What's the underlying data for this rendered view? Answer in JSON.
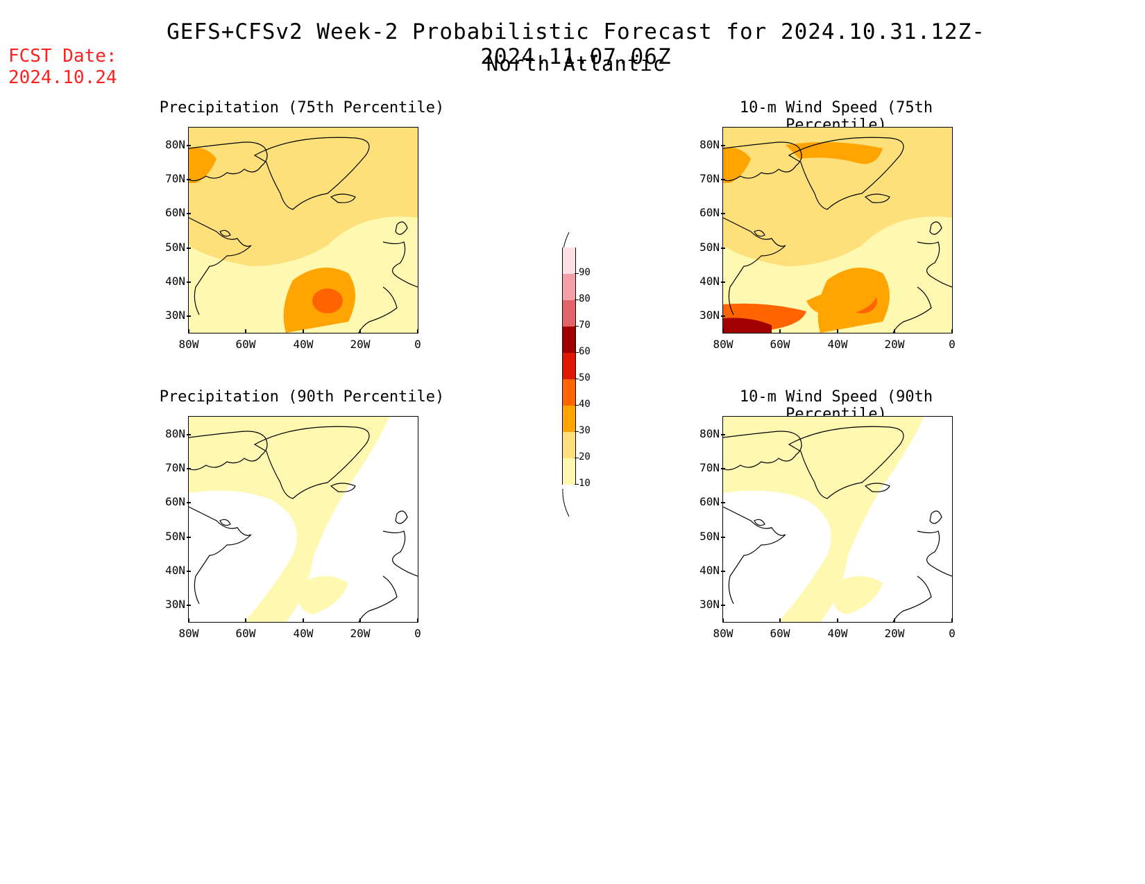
{
  "header": {
    "title": "GEFS+CFSv2 Week-2 Probabilistic Forecast for 2024.10.31.12Z-2024.11.07.06Z",
    "subtitle": "North Atlantic",
    "fcst_label": "FCST Date:",
    "fcst_date": "2024.10.24"
  },
  "panels": [
    {
      "title": "Precipitation (75th Percentile)",
      "level": 2
    },
    {
      "title": "10-m Wind Speed (75th Percentile)",
      "level": 3
    },
    {
      "title": "Precipitation (90th Percentile)",
      "level": 1
    },
    {
      "title": "10-m Wind Speed (90th Percentile)",
      "level": 1
    }
  ],
  "axes": {
    "lat_labels": [
      "80N",
      "70N",
      "60N",
      "50N",
      "40N",
      "30N"
    ],
    "lon_labels": [
      "80W",
      "60W",
      "40W",
      "20W",
      "0"
    ]
  },
  "colorbar": {
    "labels": [
      "90",
      "80",
      "70",
      "60",
      "50",
      "40",
      "30",
      "20",
      "10"
    ],
    "colors": [
      "#fde0e4",
      "#f4a0a6",
      "#e06468",
      "#a20000",
      "#e01800",
      "#ff6400",
      "#ffa400",
      "#fde07a",
      "#fff8b0"
    ]
  }
}
